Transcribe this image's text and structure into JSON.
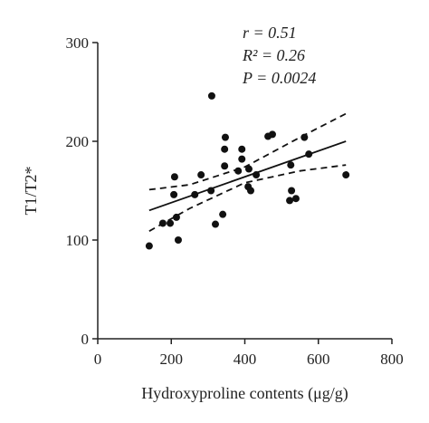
{
  "chart_data": {
    "type": "scatter",
    "x": [
      140,
      177,
      197,
      209,
      207,
      214,
      219,
      264,
      281,
      320,
      308,
      310,
      340,
      345,
      345,
      347,
      382,
      392,
      392,
      411,
      409,
      416,
      431,
      463,
      475,
      522,
      539,
      525,
      527,
      562,
      574,
      675
    ],
    "values": [
      94,
      117,
      117,
      164,
      146,
      123,
      100,
      146,
      166,
      116,
      150,
      246,
      126,
      175,
      192,
      204,
      170,
      182,
      192,
      172,
      154,
      150,
      166,
      205,
      207,
      140,
      142,
      176,
      150,
      204,
      187,
      166
    ],
    "color": "#111111",
    "fit": {
      "x": [
        140,
        675
      ],
      "values": [
        130,
        200
      ]
    },
    "band_upper": {
      "x": [
        140,
        250,
        400,
        550,
        675
      ],
      "values": [
        151,
        156,
        174,
        204,
        228
      ]
    },
    "band_lower": {
      "x": [
        140,
        250,
        400,
        550,
        675
      ],
      "values": [
        109,
        132,
        158,
        170,
        176
      ]
    },
    "xlim": [
      0,
      800
    ],
    "xticks": [
      0,
      200,
      400,
      600,
      800
    ],
    "ylim": [
      0,
      300
    ],
    "yticks": [
      0,
      100,
      200,
      300
    ],
    "xlabel": "Hydroxyproline contents (μg/g)",
    "ylabel": "T1/T2*",
    "annotations": [
      "r = 0.51",
      "R² = 0.26",
      "P = 0.0024"
    ]
  }
}
